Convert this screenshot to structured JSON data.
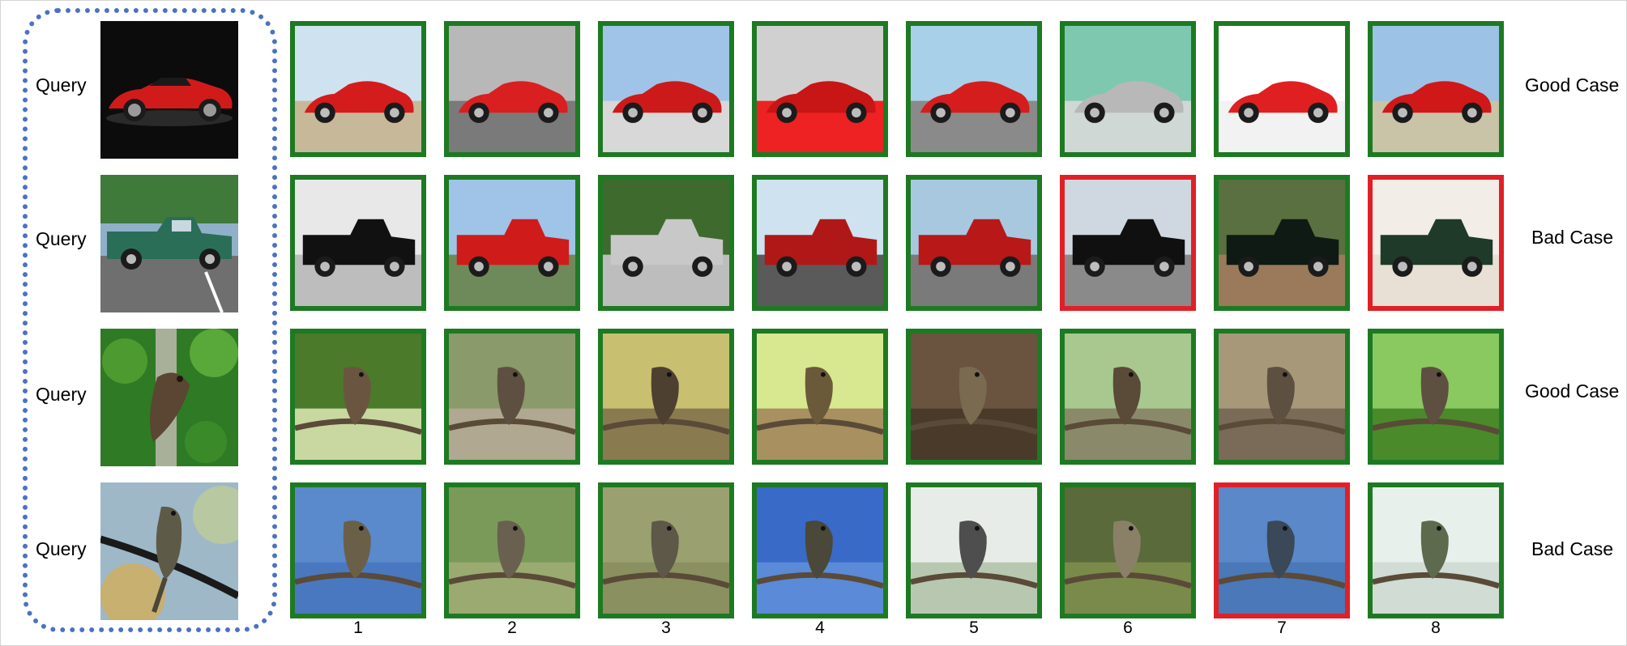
{
  "query_label": "Query",
  "rows": [
    {
      "case": "Good Case",
      "subject": "car",
      "results": [
        "good",
        "good",
        "good",
        "good",
        "good",
        "good",
        "good",
        "good"
      ]
    },
    {
      "case": "Bad Case",
      "subject": "truck",
      "results": [
        "good",
        "good",
        "good",
        "good",
        "good",
        "bad",
        "good",
        "bad"
      ]
    },
    {
      "case": "Good Case",
      "subject": "bird1",
      "results": [
        "good",
        "good",
        "good",
        "good",
        "good",
        "good",
        "good",
        "good"
      ]
    },
    {
      "case": "Bad Case",
      "subject": "bird2",
      "results": [
        "good",
        "good",
        "good",
        "good",
        "good",
        "good",
        "bad",
        "good"
      ]
    }
  ],
  "ranks": [
    "1",
    "2",
    "3",
    "4",
    "5",
    "6",
    "7",
    "8"
  ],
  "colors": {
    "good_border": "#1d7a22",
    "bad_border": "#e02027",
    "query_box": "#4a72c4"
  }
}
